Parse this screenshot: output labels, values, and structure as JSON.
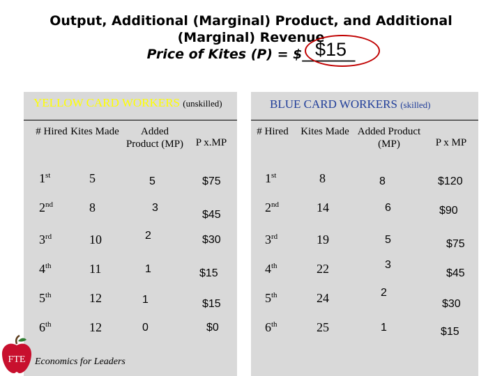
{
  "title": {
    "line1": "Output, Additional (Marginal) Product, and Additional",
    "line2": "(Marginal) Revenue",
    "line3": "Price of Kites (P) = $________",
    "price_value": "$15"
  },
  "yellow": {
    "heading": "YELLOW CARD WORKERS",
    "sub": "(unskilled)",
    "headers": [
      "# Hired",
      "Kites Made",
      "Added Product (MP)",
      "P x.MP"
    ],
    "rows": [
      {
        "n": "1",
        "sfx": "st",
        "kites": "5",
        "mp": "5",
        "pmp": "$75"
      },
      {
        "n": "2",
        "sfx": "nd",
        "kites": "8",
        "mp": "3",
        "pmp": "$45"
      },
      {
        "n": "3",
        "sfx": "rd",
        "kites": "10",
        "mp": "2",
        "pmp": "$30"
      },
      {
        "n": "4",
        "sfx": "th",
        "kites": "11",
        "mp": "1",
        "pmp": "$15"
      },
      {
        "n": "5",
        "sfx": "th",
        "kites": "12",
        "mp": "1",
        "pmp": "$15"
      },
      {
        "n": "6",
        "sfx": "th",
        "kites": "12",
        "mp": "0",
        "pmp": "$0"
      }
    ]
  },
  "blue": {
    "heading": "BLUE CARD WORKERS",
    "sub": "(skilled)",
    "headers": [
      "# Hired",
      "Kites Made",
      "Added Product (MP)",
      "P x MP"
    ],
    "rows": [
      {
        "n": "1",
        "sfx": "st",
        "kites": "8",
        "mp": "8",
        "pmp": "$120"
      },
      {
        "n": "2",
        "sfx": "nd",
        "kites": "14",
        "mp": "6",
        "pmp": "$90"
      },
      {
        "n": "3",
        "sfx": "rd",
        "kites": "19",
        "mp": "5",
        "pmp": "$75"
      },
      {
        "n": "4",
        "sfx": "th",
        "kites": "22",
        "mp": "3",
        "pmp": "$45"
      },
      {
        "n": "5",
        "sfx": "th",
        "kites": "24",
        "mp": "2",
        "pmp": "$30"
      },
      {
        "n": "6",
        "sfx": "th",
        "kites": "25",
        "mp": "1",
        "pmp": "$15"
      }
    ]
  },
  "logo": {
    "text": "FTE",
    "color": "#c8102e"
  },
  "footer": "Economics for Leaders"
}
